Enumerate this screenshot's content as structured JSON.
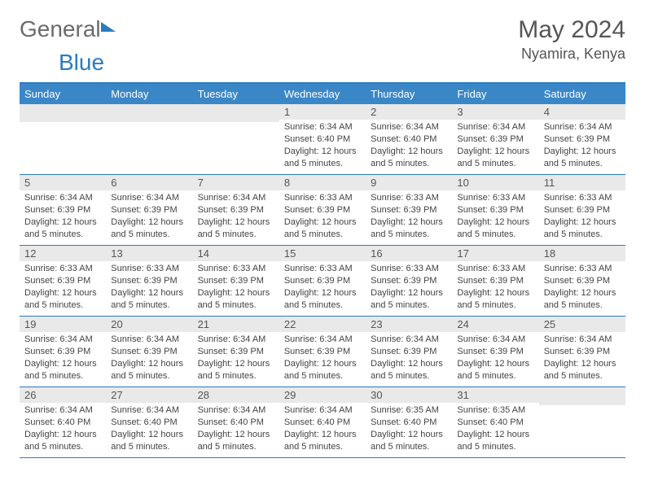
{
  "brand": {
    "part1": "General",
    "part2": "Blue"
  },
  "title": "May 2024",
  "location": "Nyamira, Kenya",
  "colors": {
    "header_bg": "#3a87c8",
    "border": "#2b7bbf",
    "daynum_bg": "#e9e9e9",
    "text": "#444444",
    "logo_gray": "#6b6b6b"
  },
  "weekdays": [
    "Sunday",
    "Monday",
    "Tuesday",
    "Wednesday",
    "Thursday",
    "Friday",
    "Saturday"
  ],
  "first_weekday_index": 3,
  "days": [
    {
      "n": 1,
      "sunrise": "6:34 AM",
      "sunset": "6:40 PM",
      "daylight": "12 hours and 5 minutes."
    },
    {
      "n": 2,
      "sunrise": "6:34 AM",
      "sunset": "6:40 PM",
      "daylight": "12 hours and 5 minutes."
    },
    {
      "n": 3,
      "sunrise": "6:34 AM",
      "sunset": "6:39 PM",
      "daylight": "12 hours and 5 minutes."
    },
    {
      "n": 4,
      "sunrise": "6:34 AM",
      "sunset": "6:39 PM",
      "daylight": "12 hours and 5 minutes."
    },
    {
      "n": 5,
      "sunrise": "6:34 AM",
      "sunset": "6:39 PM",
      "daylight": "12 hours and 5 minutes."
    },
    {
      "n": 6,
      "sunrise": "6:34 AM",
      "sunset": "6:39 PM",
      "daylight": "12 hours and 5 minutes."
    },
    {
      "n": 7,
      "sunrise": "6:34 AM",
      "sunset": "6:39 PM",
      "daylight": "12 hours and 5 minutes."
    },
    {
      "n": 8,
      "sunrise": "6:33 AM",
      "sunset": "6:39 PM",
      "daylight": "12 hours and 5 minutes."
    },
    {
      "n": 9,
      "sunrise": "6:33 AM",
      "sunset": "6:39 PM",
      "daylight": "12 hours and 5 minutes."
    },
    {
      "n": 10,
      "sunrise": "6:33 AM",
      "sunset": "6:39 PM",
      "daylight": "12 hours and 5 minutes."
    },
    {
      "n": 11,
      "sunrise": "6:33 AM",
      "sunset": "6:39 PM",
      "daylight": "12 hours and 5 minutes."
    },
    {
      "n": 12,
      "sunrise": "6:33 AM",
      "sunset": "6:39 PM",
      "daylight": "12 hours and 5 minutes."
    },
    {
      "n": 13,
      "sunrise": "6:33 AM",
      "sunset": "6:39 PM",
      "daylight": "12 hours and 5 minutes."
    },
    {
      "n": 14,
      "sunrise": "6:33 AM",
      "sunset": "6:39 PM",
      "daylight": "12 hours and 5 minutes."
    },
    {
      "n": 15,
      "sunrise": "6:33 AM",
      "sunset": "6:39 PM",
      "daylight": "12 hours and 5 minutes."
    },
    {
      "n": 16,
      "sunrise": "6:33 AM",
      "sunset": "6:39 PM",
      "daylight": "12 hours and 5 minutes."
    },
    {
      "n": 17,
      "sunrise": "6:33 AM",
      "sunset": "6:39 PM",
      "daylight": "12 hours and 5 minutes."
    },
    {
      "n": 18,
      "sunrise": "6:33 AM",
      "sunset": "6:39 PM",
      "daylight": "12 hours and 5 minutes."
    },
    {
      "n": 19,
      "sunrise": "6:34 AM",
      "sunset": "6:39 PM",
      "daylight": "12 hours and 5 minutes."
    },
    {
      "n": 20,
      "sunrise": "6:34 AM",
      "sunset": "6:39 PM",
      "daylight": "12 hours and 5 minutes."
    },
    {
      "n": 21,
      "sunrise": "6:34 AM",
      "sunset": "6:39 PM",
      "daylight": "12 hours and 5 minutes."
    },
    {
      "n": 22,
      "sunrise": "6:34 AM",
      "sunset": "6:39 PM",
      "daylight": "12 hours and 5 minutes."
    },
    {
      "n": 23,
      "sunrise": "6:34 AM",
      "sunset": "6:39 PM",
      "daylight": "12 hours and 5 minutes."
    },
    {
      "n": 24,
      "sunrise": "6:34 AM",
      "sunset": "6:39 PM",
      "daylight": "12 hours and 5 minutes."
    },
    {
      "n": 25,
      "sunrise": "6:34 AM",
      "sunset": "6:39 PM",
      "daylight": "12 hours and 5 minutes."
    },
    {
      "n": 26,
      "sunrise": "6:34 AM",
      "sunset": "6:40 PM",
      "daylight": "12 hours and 5 minutes."
    },
    {
      "n": 27,
      "sunrise": "6:34 AM",
      "sunset": "6:40 PM",
      "daylight": "12 hours and 5 minutes."
    },
    {
      "n": 28,
      "sunrise": "6:34 AM",
      "sunset": "6:40 PM",
      "daylight": "12 hours and 5 minutes."
    },
    {
      "n": 29,
      "sunrise": "6:34 AM",
      "sunset": "6:40 PM",
      "daylight": "12 hours and 5 minutes."
    },
    {
      "n": 30,
      "sunrise": "6:35 AM",
      "sunset": "6:40 PM",
      "daylight": "12 hours and 5 minutes."
    },
    {
      "n": 31,
      "sunrise": "6:35 AM",
      "sunset": "6:40 PM",
      "daylight": "12 hours and 5 minutes."
    }
  ],
  "labels": {
    "sunrise": "Sunrise:",
    "sunset": "Sunset:",
    "daylight": "Daylight:"
  }
}
